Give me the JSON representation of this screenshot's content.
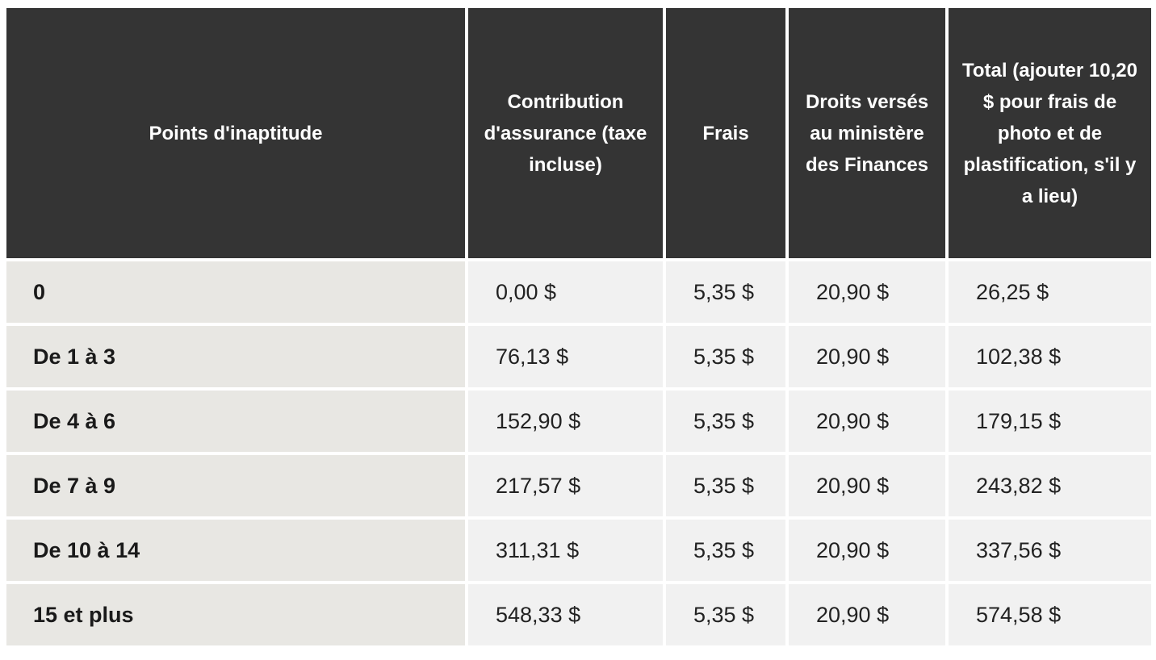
{
  "table": {
    "headers": [
      "Points d'inaptitude",
      "Contribution d'assurance (taxe incluse)",
      "Frais",
      "Droits versés au ministère des Finances",
      "Total (ajouter 10,20 $ pour frais de photo et de plastification, s'il y a lieu)"
    ],
    "rows": [
      [
        "0",
        "0,00 $",
        "5,35 $",
        "20,90 $",
        "26,25 $"
      ],
      [
        "De 1 à 3",
        "76,13 $",
        "5,35 $",
        "20,90 $",
        "102,38 $"
      ],
      [
        "De 4 à 6",
        "152,90 $",
        "5,35 $",
        "20,90 $",
        "179,15 $"
      ],
      [
        "De 7 à 9",
        "217,57 $",
        "5,35 $",
        "20,90 $",
        "243,82 $"
      ],
      [
        "De 10 à 14",
        "311,31 $",
        "5,35 $",
        "20,90 $",
        "337,56 $"
      ],
      [
        "15 et plus",
        "548,33 $",
        "5,35 $",
        "20,90 $",
        "574,58 $"
      ]
    ]
  },
  "colors": {
    "header_bg": "#343434",
    "header_text": "#ffffff",
    "label_cell_bg": "#e8e7e3",
    "value_cell_bg": "#f1f1f1"
  }
}
